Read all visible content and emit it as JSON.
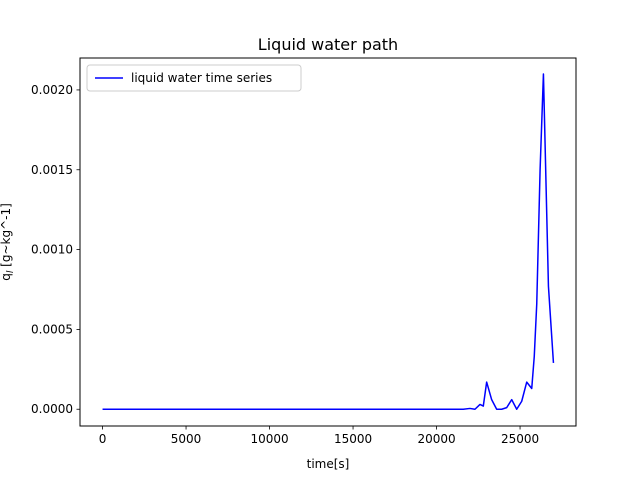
{
  "chart_data": {
    "type": "line",
    "title": "Liquid water path",
    "xlabel": "time[s]",
    "ylabel": "qₗ [g~kg^-1]",
    "ylabel_parts": {
      "prefix": "q",
      "subscript": "l",
      "rest": " [g~kg^-1]"
    },
    "xlim": [
      -1350,
      28350
    ],
    "ylim": [
      -0.000105,
      0.0022
    ],
    "xticks": [
      0,
      5000,
      10000,
      15000,
      20000,
      25000
    ],
    "xtick_labels": [
      "0",
      "5000",
      "10000",
      "15000",
      "20000",
      "25000"
    ],
    "yticks": [
      0.0,
      0.0005,
      0.001,
      0.0015,
      0.002
    ],
    "ytick_labels": [
      "0.0000",
      "0.0005",
      "0.0010",
      "0.0015",
      "0.0020"
    ],
    "grid": false,
    "legend_position": "upper left",
    "series": [
      {
        "name": "liquid water time series",
        "color": "#0000ff",
        "x": [
          0,
          3000,
          6000,
          9000,
          12000,
          15000,
          18000,
          21000,
          21600,
          22000,
          22300,
          22600,
          22800,
          23000,
          23300,
          23600,
          23900,
          24200,
          24500,
          24800,
          25100,
          25400,
          25700,
          25850,
          26000,
          26200,
          26400,
          26700,
          27000
        ],
        "y": [
          0.0,
          0.0,
          0.0,
          0.0,
          0.0,
          0.0,
          0.0,
          0.0,
          0.0,
          5e-06,
          0.0,
          3e-05,
          2e-05,
          0.00017,
          6e-05,
          0.0,
          0.0,
          1e-05,
          6e-05,
          0.0,
          5e-05,
          0.00017,
          0.00013,
          0.00033,
          0.00066,
          0.0015,
          0.0021,
          0.00077,
          0.00029
        ]
      }
    ]
  }
}
